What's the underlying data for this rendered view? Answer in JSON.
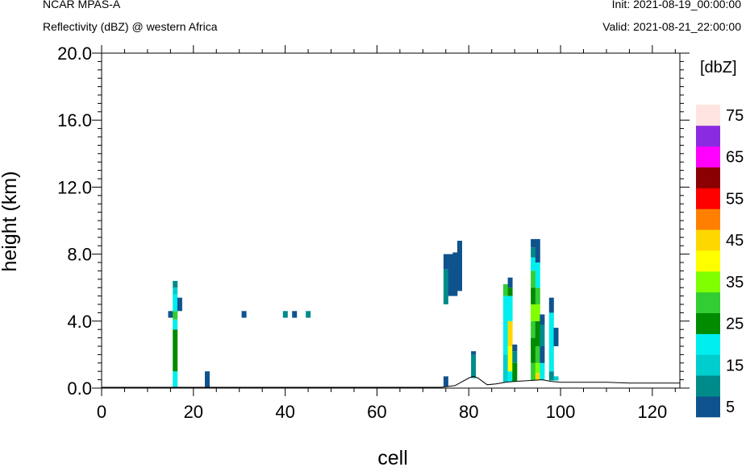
{
  "header": {
    "model": "NCAR MPAS-A",
    "field": "Reflectivity (dBZ) @ western Africa",
    "init": "Init: 2021-08-19_00:00:00",
    "valid": "Valid: 2021-08-21_22:00:00"
  },
  "chart_data": {
    "type": "heatmap",
    "xlabel": "cell",
    "ylabel": "height (km)",
    "xlim": [
      0,
      126
    ],
    "ylim": [
      0,
      20
    ],
    "x_ticks": [
      0,
      20,
      40,
      60,
      80,
      100,
      120
    ],
    "x_tick_labels": [
      "0",
      "20",
      "40",
      "60",
      "80",
      "100",
      "120"
    ],
    "y_ticks": [
      0,
      4,
      8,
      12,
      16,
      20
    ],
    "y_tick_labels": [
      "0.0",
      "4.0",
      "8.0",
      "12.0",
      "16.0",
      "20.0"
    ],
    "colorbar": {
      "unit_label": "[dbZ]",
      "levels": [
        5,
        10,
        15,
        20,
        25,
        30,
        35,
        40,
        45,
        50,
        55,
        60,
        65,
        70,
        75
      ],
      "labels": [
        "5",
        "15",
        "25",
        "35",
        "45",
        "55",
        "65",
        "75"
      ],
      "colors": [
        "#0f538e",
        "#008b8b",
        "#00cdcd",
        "#00eeee",
        "#008b00",
        "#32cd32",
        "#7fff00",
        "#ffff00",
        "#ffd700",
        "#ff8000",
        "#ff0000",
        "#8b0000",
        "#ff00ff",
        "#8a2be2",
        "#ffe4e1"
      ]
    },
    "terrain": [
      [
        0,
        0.05
      ],
      [
        74,
        0.05
      ],
      [
        77,
        0.15
      ],
      [
        80,
        0.6
      ],
      [
        81,
        0.7
      ],
      [
        82,
        0.6
      ],
      [
        84,
        0.2
      ],
      [
        86,
        0.25
      ],
      [
        88,
        0.35
      ],
      [
        90,
        0.4
      ],
      [
        96,
        0.5
      ],
      [
        98,
        0.4
      ],
      [
        100,
        0.35
      ],
      [
        104,
        0.35
      ],
      [
        110,
        0.35
      ],
      [
        115,
        0.3
      ],
      [
        126,
        0.3
      ]
    ],
    "columns": [
      {
        "x": 15,
        "segments": [
          [
            4.2,
            4.6,
            5
          ]
        ]
      },
      {
        "x": 16,
        "segments": [
          [
            0.05,
            1.0,
            20
          ],
          [
            1.0,
            3.5,
            25
          ],
          [
            3.5,
            4.1,
            20
          ],
          [
            4.1,
            4.6,
            30
          ],
          [
            4.6,
            5.6,
            20
          ],
          [
            5.6,
            6.0,
            15
          ],
          [
            6.0,
            6.4,
            10
          ]
        ]
      },
      {
        "x": 17,
        "segments": [
          [
            4.6,
            5.4,
            5
          ]
        ]
      },
      {
        "x": 23,
        "segments": [
          [
            0.05,
            1.0,
            5
          ]
        ]
      },
      {
        "x": 31,
        "segments": [
          [
            4.2,
            4.6,
            5
          ]
        ]
      },
      {
        "x": 40,
        "segments": [
          [
            4.2,
            4.6,
            10
          ]
        ]
      },
      {
        "x": 42,
        "segments": [
          [
            4.2,
            4.6,
            5
          ]
        ]
      },
      {
        "x": 45,
        "segments": [
          [
            4.2,
            4.6,
            10
          ]
        ]
      },
      {
        "x": 75,
        "segments": [
          [
            0.1,
            0.7,
            5
          ],
          [
            5.0,
            7.1,
            10
          ],
          [
            7.1,
            8.0,
            5
          ]
        ]
      },
      {
        "x": 76,
        "segments": [
          [
            5.5,
            8.0,
            5
          ]
        ]
      },
      {
        "x": 77,
        "segments": [
          [
            5.5,
            8.1,
            5
          ]
        ]
      },
      {
        "x": 78,
        "segments": [
          [
            5.8,
            8.8,
            5
          ]
        ]
      },
      {
        "x": 81,
        "segments": [
          [
            0.6,
            2.0,
            10
          ],
          [
            2.0,
            2.2,
            5
          ]
        ]
      },
      {
        "x": 88,
        "segments": [
          [
            0.35,
            2.0,
            15
          ],
          [
            2.0,
            5.5,
            20
          ],
          [
            5.5,
            6.2,
            30
          ]
        ]
      },
      {
        "x": 89,
        "segments": [
          [
            0.4,
            1.0,
            20
          ],
          [
            1.0,
            2.5,
            40
          ],
          [
            2.5,
            4.0,
            45
          ],
          [
            4.0,
            5.5,
            20
          ],
          [
            5.5,
            6.0,
            25
          ],
          [
            6.0,
            6.6,
            5
          ]
        ]
      },
      {
        "x": 90,
        "segments": [
          [
            0.4,
            1.5,
            25
          ],
          [
            1.5,
            2.2,
            10
          ],
          [
            2.2,
            2.6,
            5
          ]
        ]
      },
      {
        "x": 94,
        "segments": [
          [
            0.45,
            1.5,
            30
          ],
          [
            1.5,
            3.0,
            25
          ],
          [
            3.0,
            4.0,
            30
          ],
          [
            4.0,
            5.0,
            35
          ],
          [
            5.0,
            6.0,
            25
          ],
          [
            6.0,
            7.0,
            30
          ],
          [
            7.0,
            7.8,
            20
          ],
          [
            7.8,
            8.4,
            10
          ],
          [
            8.4,
            8.9,
            5
          ]
        ]
      },
      {
        "x": 95,
        "segments": [
          [
            0.5,
            0.9,
            45
          ],
          [
            0.9,
            1.5,
            35
          ],
          [
            1.5,
            2.5,
            30
          ],
          [
            2.5,
            4.0,
            25
          ],
          [
            4.0,
            5.0,
            35
          ],
          [
            5.0,
            6.0,
            30
          ],
          [
            6.0,
            7.5,
            20
          ],
          [
            7.5,
            8.9,
            5
          ]
        ]
      },
      {
        "x": 96,
        "segments": [
          [
            0.5,
            1.5,
            20
          ],
          [
            1.5,
            2.5,
            5
          ],
          [
            2.5,
            3.8,
            10
          ],
          [
            3.8,
            4.4,
            5
          ]
        ]
      },
      {
        "x": 98,
        "segments": [
          [
            0.45,
            1.0,
            10
          ],
          [
            1.0,
            4.5,
            20
          ],
          [
            4.5,
            5.4,
            5
          ]
        ]
      },
      {
        "x": 99,
        "segments": [
          [
            0.45,
            0.7,
            15
          ],
          [
            2.5,
            3.6,
            5
          ]
        ]
      }
    ]
  }
}
